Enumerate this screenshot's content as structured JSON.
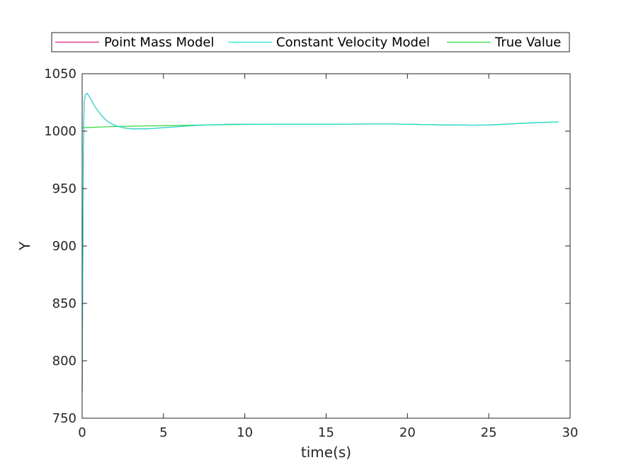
{
  "chart_data": {
    "type": "line",
    "title": "",
    "xlabel": "time(s)",
    "ylabel": "Y",
    "xlim": [
      0,
      30
    ],
    "ylim": [
      750,
      1050
    ],
    "xticks": [
      0,
      5,
      10,
      15,
      20,
      25,
      30
    ],
    "yticks": [
      750,
      800,
      850,
      900,
      950,
      1000,
      1050
    ],
    "grid": false,
    "legend_position": "top-center, outside plot, horizontal",
    "series": [
      {
        "name": "Point Mass Model",
        "color": "#e0208c",
        "x": [
          0,
          0.04,
          0.08,
          0.12,
          0.2,
          0.3,
          0.4,
          0.6,
          0.8,
          1.0,
          1.3,
          1.6,
          2.0,
          2.5,
          3.0,
          3.5,
          4.0,
          5.0,
          6.0,
          7.0,
          8.0,
          9.0,
          10.0,
          12.0,
          14.0,
          16.0,
          18.0,
          19.0,
          20.0,
          22.0,
          24.0,
          25.0,
          26.0,
          27.0,
          28.0,
          29.3
        ],
        "y": [
          773,
          880,
          985,
          1025,
          1032,
          1033,
          1031,
          1026,
          1021,
          1017,
          1012,
          1008,
          1005,
          1003,
          1002,
          1002,
          1002,
          1003,
          1004,
          1005,
          1005.5,
          1006,
          1006,
          1006,
          1006,
          1006,
          1006.3,
          1006.3,
          1006,
          1005.5,
          1005.2,
          1005.3,
          1006,
          1006.8,
          1007.5,
          1008
        ]
      },
      {
        "name": "Constant Velocity Model",
        "color": "#1fe6d6",
        "x": [
          0,
          0.04,
          0.08,
          0.12,
          0.2,
          0.3,
          0.4,
          0.6,
          0.8,
          1.0,
          1.3,
          1.6,
          2.0,
          2.5,
          3.0,
          3.5,
          4.0,
          5.0,
          6.0,
          7.0,
          8.0,
          9.0,
          10.0,
          12.0,
          14.0,
          16.0,
          18.0,
          19.0,
          20.0,
          22.0,
          24.0,
          25.0,
          26.0,
          27.0,
          28.0,
          29.3
        ],
        "y": [
          773,
          880,
          985,
          1025,
          1032,
          1033,
          1031,
          1026,
          1021,
          1017,
          1012,
          1008,
          1005,
          1003,
          1002,
          1002,
          1002,
          1003,
          1004,
          1005,
          1005.5,
          1006,
          1006,
          1006,
          1006,
          1006,
          1006.3,
          1006.3,
          1006,
          1005.5,
          1005.2,
          1005.3,
          1006,
          1006.8,
          1007.5,
          1008
        ]
      },
      {
        "name": "True Value",
        "color": "#2ed93a",
        "x": [
          0,
          1,
          2,
          3,
          4,
          5,
          6,
          8,
          10,
          12,
          15,
          18,
          19,
          20,
          22,
          24,
          25,
          26,
          27,
          28,
          29.3
        ],
        "y": [
          1003,
          1003.5,
          1004,
          1004.3,
          1004.5,
          1004.8,
          1005,
          1005.5,
          1005.8,
          1006,
          1006,
          1006.2,
          1006.2,
          1006,
          1005.5,
          1005.2,
          1005.3,
          1006,
          1006.8,
          1007.5,
          1008
        ]
      }
    ]
  }
}
